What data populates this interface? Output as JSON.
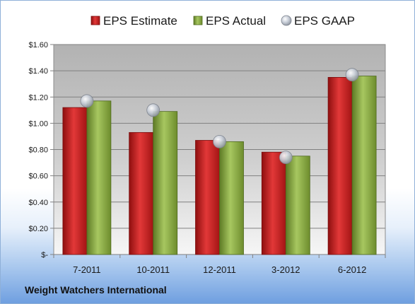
{
  "footer": {
    "company": "Weight Watchers International"
  },
  "colors": {
    "estimate": "#cc1f1f",
    "actual": "#86a840",
    "gaap": "#b9c0cc"
  },
  "chart_data": {
    "type": "bar",
    "categories": [
      "7-2011",
      "10-2011",
      "12-2011",
      "3-2012",
      "6-2012"
    ],
    "series": [
      {
        "name": "EPS Estimate",
        "kind": "bar",
        "values": [
          1.12,
          0.93,
          0.87,
          0.78,
          1.35
        ]
      },
      {
        "name": "EPS Actual",
        "kind": "bar",
        "values": [
          1.17,
          1.09,
          0.86,
          0.75,
          1.36
        ]
      },
      {
        "name": "EPS GAAP",
        "kind": "marker",
        "values": [
          1.17,
          1.1,
          0.86,
          0.74,
          1.37
        ]
      }
    ],
    "ylim": [
      0,
      1.6
    ],
    "yticks": [
      0,
      0.2,
      0.4,
      0.6,
      0.8,
      1.0,
      1.2,
      1.4,
      1.6
    ],
    "ytick_labels": [
      "$-",
      "$0.20",
      "$0.40",
      "$0.60",
      "$0.80",
      "$1.00",
      "$1.20",
      "$1.40",
      "$1.60"
    ],
    "legend_position": "top",
    "grid": true
  }
}
